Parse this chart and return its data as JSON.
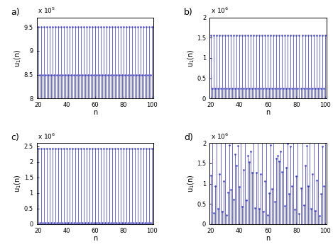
{
  "n_start": 20,
  "n_end": 100,
  "panel_a": {
    "label": "a)",
    "ylabel": "u$_1$(n)",
    "scale_label": "x 10$^5$",
    "ylim": [
      800000.0,
      970000.0
    ],
    "yticks": [
      800000.0,
      850000.0,
      900000.0,
      950000.0
    ],
    "ytick_labels": [
      "8",
      "8.5",
      "9",
      "9.5"
    ],
    "val_high": 950000.0,
    "val_low": 850000.0,
    "baseline": 800000.0
  },
  "panel_b": {
    "label": "b)",
    "ylabel": "u$_1$(n)",
    "scale_label": "x 10$^6$",
    "ylim": [
      0,
      2000000.0
    ],
    "yticks": [
      0,
      500000.0,
      1000000.0,
      1500000.0,
      2000000.0
    ],
    "ytick_labels": [
      "0",
      "0.5",
      "1",
      "1.5",
      "2"
    ],
    "val_high": 1550000.0,
    "val_low": 250000.0,
    "baseline": 0
  },
  "panel_c": {
    "label": "c)",
    "ylabel": "u$_1$(n)",
    "scale_label": "x 10$^6$",
    "ylim": [
      0,
      2600000.0
    ],
    "yticks": [
      0,
      500000.0,
      1000000.0,
      1500000.0,
      2000000.0,
      2500000.0
    ],
    "ytick_labels": [
      "0",
      "0.5",
      "1",
      "1.5",
      "2",
      "2.5"
    ],
    "val_high": 2420000.0,
    "val_low": 50000.0,
    "baseline": 0
  },
  "panel_d": {
    "label": "d)",
    "ylabel": "u$_1$(n)",
    "scale_label": "x 10$^6$",
    "ylim": [
      0,
      2000000.0
    ],
    "yticks": [
      0,
      500000.0,
      1000000.0,
      1500000.0,
      2000000.0
    ],
    "ytick_labels": [
      "0",
      "0.5",
      "1",
      "1.5",
      "2"
    ],
    "baseline": 0
  },
  "line_color": "#4444bb",
  "dot_color": "#4444bb",
  "xlabel": "n",
  "xticks": [
    20,
    40,
    60,
    80,
    100
  ]
}
